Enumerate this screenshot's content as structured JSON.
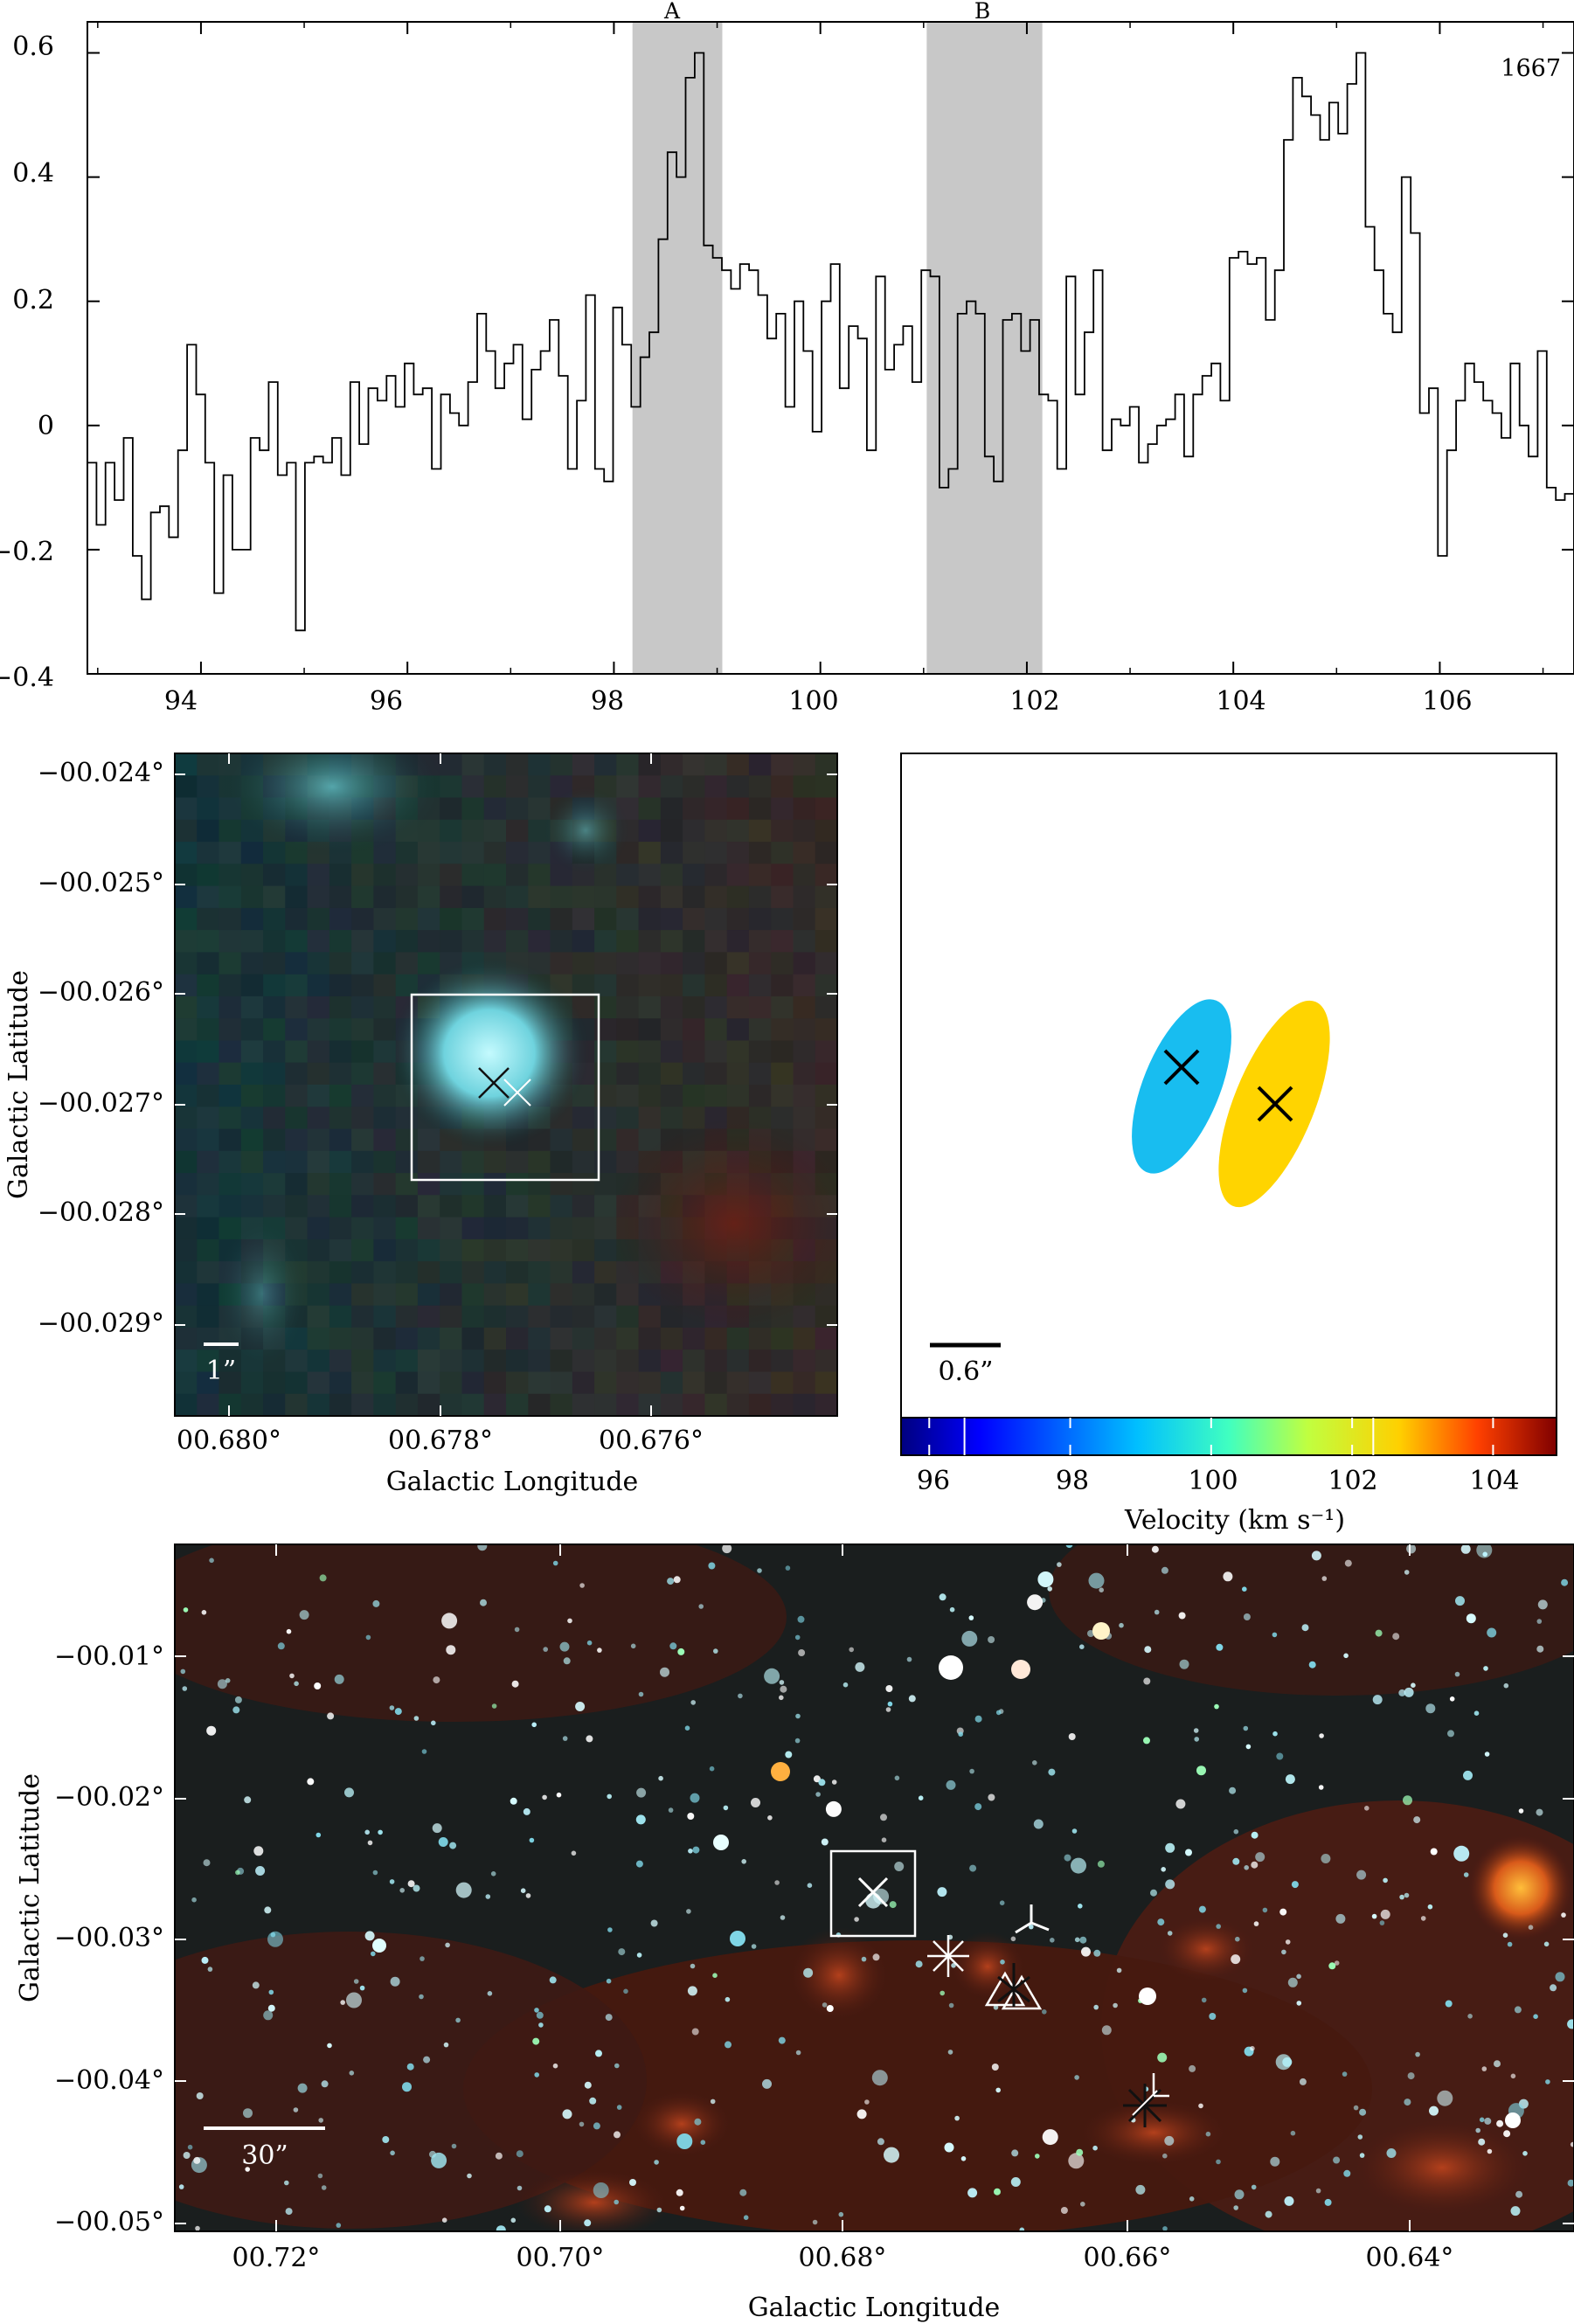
{
  "chart_data": [
    {
      "type": "line",
      "title": "",
      "xlabel": "",
      "ylabel": "",
      "annotation": "1667",
      "xlim": [
        92.9,
        107.3
      ],
      "ylim": [
        -0.4,
        0.65
      ],
      "x_ticks": [
        "94",
        "96",
        "98",
        "100",
        "102",
        "104",
        "106"
      ],
      "y_ticks": [
        "0.6",
        "0.4",
        "0.2",
        "0",
        "−0.2",
        "−0.4"
      ],
      "x_tick_values": [
        94,
        96,
        98,
        100,
        102,
        104,
        106
      ],
      "y_tick_values": [
        0.6,
        0.4,
        0.2,
        0,
        -0.2,
        -0.4
      ],
      "shaded_regions": [
        {
          "label": "A",
          "x0": 98.18,
          "x1": 99.05
        },
        {
          "label": "B",
          "x0": 101.03,
          "x1": 102.15
        }
      ],
      "series": [
        {
          "x0": 92.9,
          "step": 0.0878,
          "values": [
            -0.06,
            -0.16,
            -0.06,
            -0.12,
            -0.02,
            -0.21,
            -0.28,
            -0.14,
            -0.13,
            -0.18,
            -0.04,
            0.13,
            0.05,
            -0.06,
            -0.27,
            -0.08,
            -0.2,
            -0.2,
            -0.02,
            -0.04,
            0.07,
            -0.08,
            -0.06,
            -0.33,
            -0.06,
            -0.05,
            -0.06,
            -0.02,
            -0.08,
            0.07,
            -0.03,
            0.06,
            0.04,
            0.08,
            0.03,
            0.1,
            0.05,
            0.06,
            -0.07,
            0.05,
            0.02,
            0.0,
            0.07,
            0.18,
            0.12,
            0.06,
            0.1,
            0.13,
            0.01,
            0.09,
            0.12,
            0.17,
            0.08,
            -0.07,
            0.04,
            0.21,
            -0.07,
            -0.09,
            0.19,
            0.13,
            0.03,
            0.11,
            0.15,
            0.3,
            0.44,
            0.4,
            0.56,
            0.6,
            0.29,
            0.27,
            0.25,
            0.22,
            0.26,
            0.25,
            0.21,
            0.14,
            0.18,
            0.03,
            0.2,
            0.12,
            -0.01,
            0.2,
            0.26,
            0.06,
            0.16,
            0.14,
            -0.04,
            0.24,
            0.09,
            0.13,
            0.16,
            0.07,
            0.25,
            0.24,
            -0.1,
            -0.07,
            0.18,
            0.2,
            0.18,
            -0.05,
            -0.09,
            0.17,
            0.18,
            0.12,
            0.17,
            0.05,
            0.04,
            -0.07,
            0.24,
            0.05,
            0.15,
            0.25,
            -0.04,
            0.01,
            0.0,
            0.03,
            -0.06,
            -0.03,
            0.0,
            0.01,
            0.05,
            -0.05,
            0.05,
            0.08,
            0.1,
            0.04,
            0.27,
            0.28,
            0.26,
            0.27,
            0.17,
            0.25,
            0.46,
            0.56,
            0.53,
            0.5,
            0.46,
            0.52,
            0.47,
            0.55,
            0.6,
            0.32,
            0.25,
            0.18,
            0.15,
            0.4,
            0.31,
            0.02,
            0.06,
            -0.21,
            -0.04,
            0.04,
            0.1,
            0.07,
            0.04,
            0.02,
            -0.02,
            0.1,
            0.0,
            -0.05,
            0.12,
            -0.1,
            -0.12,
            -0.11,
            -0.07,
            0.0,
            -0.1,
            -0.07,
            -0.06,
            0.06,
            0.0,
            0.12,
            -0.03,
            -0.12,
            -0.05,
            -0.17,
            -0.02,
            -0.07,
            0.05,
            0.09,
            -0.13,
            -0.06,
            0.05,
            0.02,
            0.1,
            -0.05,
            -0.11,
            -0.07,
            0.04,
            -0.01,
            -0.22,
            -0.06,
            0.1,
            0.08,
            0.09,
            0.06,
            0.0,
            -0.02,
            0.05,
            0.04,
            0.03,
            -0.02,
            -0.03,
            -0.05,
            0.14,
            -0.02,
            0.09,
            0.04,
            0.06,
            0.05,
            0.1,
            -0.06,
            0.06,
            0.04,
            -0.04,
            -0.02,
            0.11,
            0.05,
            0.02,
            0.01,
            -0.02,
            0.08,
            -0.09,
            0.02,
            -0.05,
            -0.04,
            0.0,
            -0.05,
            0.1,
            0.06,
            -0.03,
            0.03,
            -0.03,
            0.06,
            0.1,
            0.04,
            -0.04
          ]
        }
      ]
    },
    {
      "type": "image",
      "xlabel": "Galactic Longitude",
      "ylabel": "Galactic Latitude",
      "x_ticks": [
        "00.680°",
        "00.678°",
        "00.676°"
      ],
      "y_ticks": [
        "−00.024°",
        "−00.025°",
        "−00.026°",
        "−00.027°",
        "−00.028°",
        "−00.029°"
      ],
      "scale_bar_label": "1”",
      "markers": [
        {
          "lon": 0.6775,
          "lat": -0.02683,
          "symbol": "x"
        },
        {
          "lon": 0.6772,
          "lat": -0.02693,
          "symbol": "x"
        }
      ]
    },
    {
      "type": "scatter",
      "xlabel": "Velocity (km s⁻¹)",
      "colorbar_range": [
        95.6,
        104.9
      ],
      "colorbar_ticks": [
        "96",
        "98",
        "100",
        "102",
        "104"
      ],
      "scale_bar_label": "0.6”",
      "series": [
        {
          "velocity": 98.6,
          "color": "#18BDF0"
        },
        {
          "velocity": 101.6,
          "color": "#FFD400"
        }
      ]
    },
    {
      "type": "image",
      "xlabel": "Galactic Longitude",
      "ylabel": "Galactic Latitude",
      "x_ticks": [
        "00.72°",
        "00.70°",
        "00.68°",
        "00.66°",
        "00.64°"
      ],
      "y_ticks": [
        "−00.01°",
        "−00.02°",
        "−00.03°",
        "−00.04°",
        "−00.05°"
      ],
      "scale_bar_label": "30”",
      "markers": [
        {
          "lon": 0.6775,
          "lat": -0.0268,
          "symbol": "x"
        },
        {
          "lon": 0.672,
          "lat": -0.0315,
          "symbol": "asterisk"
        },
        {
          "lon": 0.6668,
          "lat": -0.0294,
          "symbol": "tri"
        },
        {
          "lon": 0.667,
          "lat": -0.035,
          "symbol": "triangle"
        },
        {
          "lon": 0.6594,
          "lat": -0.0417,
          "symbol": "asterisk"
        }
      ]
    }
  ]
}
